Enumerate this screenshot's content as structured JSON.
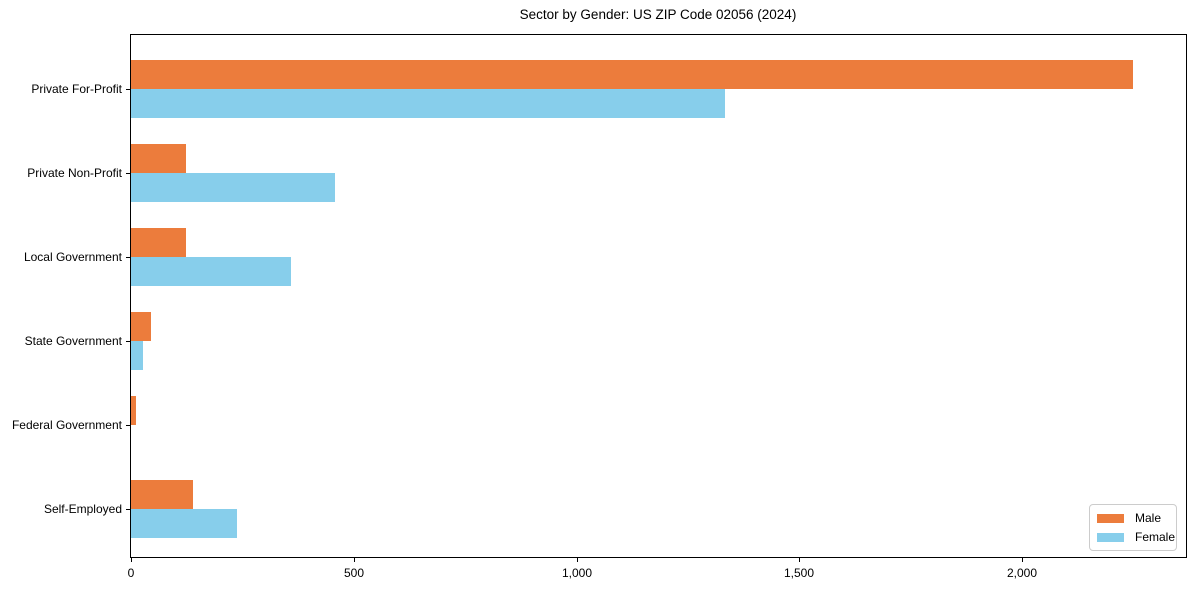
{
  "chart_data": {
    "type": "bar",
    "orientation": "horizontal",
    "title": "Sector by Gender: US ZIP Code 02056 (2024)",
    "categories": [
      "Private For-Profit",
      "Private Non-Profit",
      "Local Government",
      "State Government",
      "Federal Government",
      "Self-Employed"
    ],
    "series": [
      {
        "name": "Male",
        "color": "#EC7C3C",
        "values": [
          2250,
          124,
          124,
          44,
          12,
          140
        ]
      },
      {
        "name": "Female",
        "color": "#87CEEB",
        "values": [
          1333,
          458,
          360,
          27,
          0,
          238
        ]
      }
    ],
    "xlabel": "",
    "ylabel": "",
    "xlim": [
      0,
      2368
    ],
    "xticks": [
      0,
      500,
      1000,
      1500,
      2000
    ],
    "xtick_labels": [
      "0",
      "500",
      "1,000",
      "1,500",
      "2,000"
    ],
    "grid": false,
    "legend": {
      "position": "lower-right",
      "entries": [
        "Male",
        "Female"
      ]
    }
  }
}
